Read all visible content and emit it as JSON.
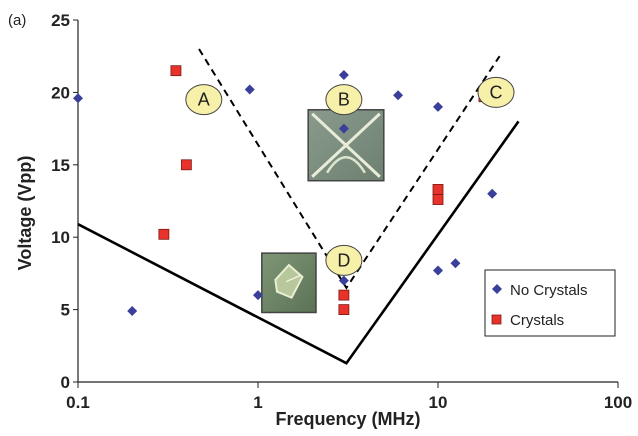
{
  "chart_data": {
    "type": "scatter",
    "panel_label": "(a)",
    "xlabel": "Frequency (MHz)",
    "ylabel": "Voltage (Vpp)",
    "xscale": "log",
    "xlim": [
      0.1,
      100
    ],
    "ylim": [
      0,
      25
    ],
    "xticks": [
      {
        "value": 0.1,
        "label": "0.1"
      },
      {
        "value": 1,
        "label": "1"
      },
      {
        "value": 10,
        "label": "10"
      },
      {
        "value": 100,
        "label": "100"
      }
    ],
    "yticks": [
      {
        "value": 0,
        "label": "0"
      },
      {
        "value": 5,
        "label": "5"
      },
      {
        "value": 10,
        "label": "10"
      },
      {
        "value": 15,
        "label": "15"
      },
      {
        "value": 20,
        "label": "20"
      },
      {
        "value": 25,
        "label": "25"
      }
    ],
    "grid": false,
    "legend": {
      "position": "bottom-right"
    },
    "series": [
      {
        "name": "No Crystals",
        "marker": "diamond",
        "color": "#3a3f9a",
        "points": [
          {
            "x": 0.1,
            "y": 19.6
          },
          {
            "x": 0.2,
            "y": 4.9
          },
          {
            "x": 0.9,
            "y": 20.2
          },
          {
            "x": 1.0,
            "y": 6.0
          },
          {
            "x": 3.0,
            "y": 21.2
          },
          {
            "x": 3.0,
            "y": 17.5
          },
          {
            "x": 3.0,
            "y": 7.0
          },
          {
            "x": 6.0,
            "y": 19.8
          },
          {
            "x": 10.0,
            "y": 19.0
          },
          {
            "x": 10.0,
            "y": 7.7
          },
          {
            "x": 12.5,
            "y": 8.2
          },
          {
            "x": 20.0,
            "y": 13.0
          }
        ]
      },
      {
        "name": "Crystals",
        "marker": "square",
        "color": "#e8322a",
        "points": [
          {
            "x": 0.3,
            "y": 10.2
          },
          {
            "x": 0.35,
            "y": 21.5
          },
          {
            "x": 0.4,
            "y": 15.0
          },
          {
            "x": 3.0,
            "y": 6.0
          },
          {
            "x": 3.0,
            "y": 5.0
          },
          {
            "x": 10.0,
            "y": 13.3
          },
          {
            "x": 10.0,
            "y": 12.6
          },
          {
            "x": 18.0,
            "y": 19.7
          }
        ]
      }
    ],
    "lines": [
      {
        "style": "solid",
        "color": "#000000",
        "points": [
          {
            "x": 0.1,
            "y": 10.9
          },
          {
            "x": 3.1,
            "y": 1.3
          },
          {
            "x": 28,
            "y": 18.0
          }
        ]
      },
      {
        "style": "dashed",
        "color": "#000000",
        "points": [
          {
            "x": 0.47,
            "y": 23.0
          },
          {
            "x": 3.1,
            "y": 6.5
          },
          {
            "x": 22,
            "y": 22.5
          }
        ]
      }
    ],
    "region_labels": [
      {
        "text": "A",
        "x": 0.5,
        "y": 19.5
      },
      {
        "text": "B",
        "x": 3.0,
        "y": 19.5
      },
      {
        "text": "C",
        "x": 21,
        "y": 20.0
      },
      {
        "text": "D",
        "x": 3.0,
        "y": 8.4
      }
    ],
    "insets": [
      {
        "name": "crystal-growth-image",
        "x_from": 1.9,
        "x_to": 5.0,
        "y_from": 13.9,
        "y_to": 18.8
      },
      {
        "name": "single-crystal-image",
        "x_from": 1.05,
        "x_to": 2.1,
        "y_from": 4.8,
        "y_to": 8.9
      }
    ]
  }
}
